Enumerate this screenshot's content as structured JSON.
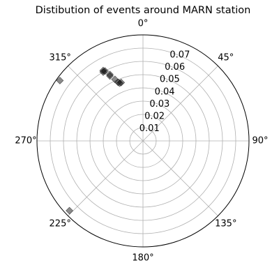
{
  "chart_data": {
    "type": "scatter",
    "projection": "polar",
    "theta_zero_location": "top",
    "theta_direction": "clockwise",
    "title": "Distibution of events around MARN station",
    "theta_ticks": [
      0,
      45,
      90,
      135,
      180,
      225,
      270,
      315
    ],
    "theta_tick_labels": [
      "0°",
      "45°",
      "90°",
      "135°",
      "180°",
      "225°",
      "270°",
      "315°"
    ],
    "r_ticks": [
      0.01,
      0.02,
      0.03,
      0.04,
      0.05,
      0.06,
      0.07
    ],
    "r_tick_labels": [
      "0.01",
      "0.02",
      "0.03",
      "0.04",
      "0.05",
      "0.06",
      "0.07"
    ],
    "rlim": [
      0,
      0.08
    ],
    "grid": true,
    "marker": "diamond",
    "marker_color": "#000000",
    "marker_alpha": 0.45,
    "series": [
      {
        "points": [
          {
            "theta": 333,
            "r": 0.055
          },
          {
            "theta": 333.5,
            "r": 0.056
          },
          {
            "theta": 330,
            "r": 0.06
          },
          {
            "theta": 330.5,
            "r": 0.061
          },
          {
            "theta": 331.5,
            "r": 0.06
          },
          {
            "theta": 335.5,
            "r": 0.051
          },
          {
            "theta": 337,
            "r": 0.048
          },
          {
            "theta": 338,
            "r": 0.047
          },
          {
            "theta": 339.5,
            "r": 0.047
          },
          {
            "theta": 306,
            "r": 0.0775
          },
          {
            "theta": 226.5,
            "r": 0.0765
          }
        ]
      }
    ]
  }
}
